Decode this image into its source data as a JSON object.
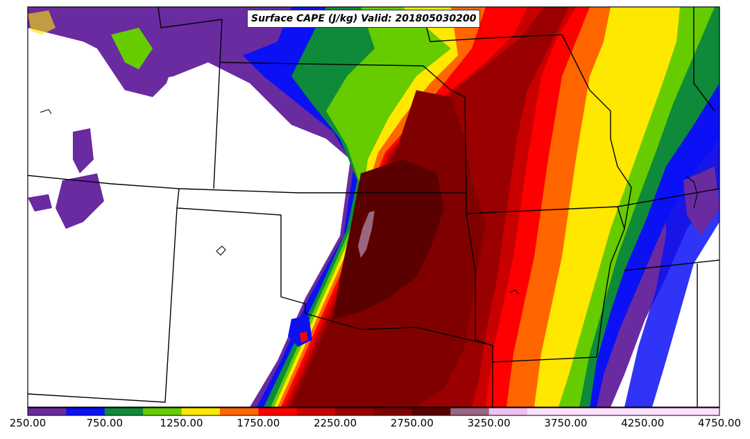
{
  "title": "Surface CAPE (J/kg) Valid: 201805030200",
  "colorbar": {
    "colors": [
      "#6a2aa0",
      "#0b10f5",
      "#0e8a3a",
      "#66cc00",
      "#ffe800",
      "#ff6600",
      "#ff0000",
      "#c80000",
      "#9a0000",
      "#800000",
      "#5a0000",
      "#9a6680",
      "#f0c0f0",
      "#fde0fd"
    ],
    "tick_labels": [
      "250.00",
      "750.00",
      "1250.00",
      "1750.00",
      "2250.00",
      "2750.00",
      "3250.00",
      "3750.00",
      "4250.00",
      "4750.00"
    ]
  },
  "field": "Surface CAPE",
  "units": "J/kg",
  "valid_time": "201805030200"
}
